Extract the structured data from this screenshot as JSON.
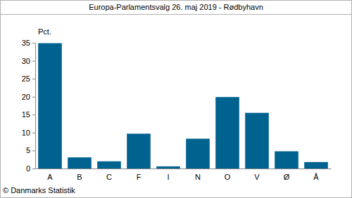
{
  "chart_data": {
    "type": "bar",
    "title": "Europa-Parlamentsvalg 26. maj 2019 - Rødbyhavn",
    "y_label": "Pct.",
    "source": "© Danmarks Statistik",
    "categories": [
      "A",
      "B",
      "C",
      "F",
      "I",
      "N",
      "O",
      "V",
      "Ø",
      "Å"
    ],
    "values": [
      34.9,
      3.1,
      2.0,
      9.7,
      0.6,
      8.3,
      19.9,
      15.5,
      4.8,
      1.8
    ],
    "color": "#00628f",
    "ylim": [
      0,
      35
    ],
    "yticks": [
      0,
      5,
      10,
      15,
      20,
      25,
      30,
      35
    ],
    "grid": false
  }
}
